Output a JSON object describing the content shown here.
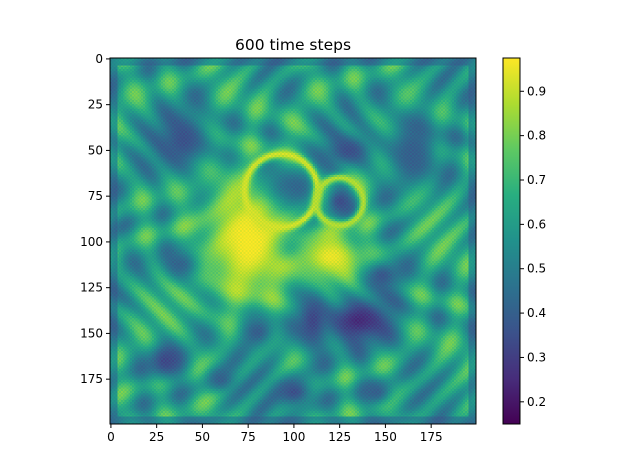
{
  "chart_data": {
    "type": "heatmap",
    "title": "600 time steps",
    "xlabel": "",
    "ylabel": "",
    "x_range": [
      0,
      199
    ],
    "y_range": [
      0,
      199
    ],
    "x_ticks": [
      0,
      25,
      50,
      75,
      100,
      125,
      150,
      175
    ],
    "y_ticks": [
      0,
      25,
      50,
      75,
      100,
      125,
      150,
      175
    ],
    "colorbar": {
      "range": [
        0.15,
        0.975
      ],
      "ticks": [
        0.2,
        0.3,
        0.4,
        0.5,
        0.6,
        0.7,
        0.8,
        0.9
      ],
      "tick_labels": [
        "0.2",
        "0.3",
        "0.4",
        "0.5",
        "0.6",
        "0.7",
        "0.8",
        "0.9"
      ]
    },
    "colormap": "viridis",
    "grid": false,
    "background_value": 0.62,
    "blobs": [
      {
        "x": 40,
        "y": 45,
        "rx": 18,
        "ry": 20,
        "value": 0.35
      },
      {
        "x": 93,
        "y": 72,
        "rx": 17,
        "ry": 15,
        "value": 0.25
      },
      {
        "x": 97,
        "y": 103,
        "rx": 12,
        "ry": 8,
        "value": 0.25
      },
      {
        "x": 125,
        "y": 78,
        "rx": 9,
        "ry": 10,
        "value": 0.33
      },
      {
        "x": 130,
        "y": 50,
        "rx": 15,
        "ry": 10,
        "value": 0.35
      },
      {
        "x": 165,
        "y": 50,
        "rx": 18,
        "ry": 24,
        "value": 0.4
      },
      {
        "x": 40,
        "y": 112,
        "rx": 13,
        "ry": 11,
        "value": 0.33
      },
      {
        "x": 135,
        "y": 143,
        "rx": 22,
        "ry": 15,
        "value": 0.25
      },
      {
        "x": 147,
        "y": 118,
        "rx": 13,
        "ry": 10,
        "value": 0.33
      },
      {
        "x": 110,
        "y": 142,
        "rx": 11,
        "ry": 20,
        "value": 0.3
      },
      {
        "x": 80,
        "y": 148,
        "rx": 12,
        "ry": 12,
        "value": 0.3
      },
      {
        "x": 30,
        "y": 165,
        "rx": 12,
        "ry": 12,
        "value": 0.33
      },
      {
        "x": 100,
        "y": 182,
        "rx": 13,
        "ry": 10,
        "value": 0.35
      },
      {
        "x": 145,
        "y": 182,
        "rx": 10,
        "ry": 8,
        "value": 0.4
      },
      {
        "x": 60,
        "y": 175,
        "rx": 9,
        "ry": 8,
        "value": 0.4
      },
      {
        "x": 75,
        "y": 100,
        "rx": 30,
        "ry": 40,
        "value": 0.97
      },
      {
        "x": 120,
        "y": 108,
        "rx": 22,
        "ry": 15,
        "value": 0.95
      }
    ],
    "rings": [
      {
        "x": 93,
        "y": 72,
        "r": 20,
        "value": 0.92
      },
      {
        "x": 125,
        "y": 78,
        "r": 13,
        "value": 0.88
      }
    ]
  }
}
